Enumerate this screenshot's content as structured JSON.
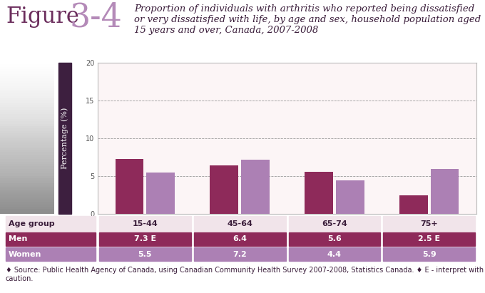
{
  "chart_data": {
    "type": "bar",
    "figure_label": "Figure",
    "figure_number": "3-4",
    "title": "Proportion of individuals with arthritis who reported being dissatisfied or very dissatisfied with life, by age and sex, household population aged 15 years and over, Canada, 2007-2008",
    "y_label": "Percentage (%)",
    "x_label": "Age group",
    "categories": [
      "15-44",
      "45-64",
      "65-74",
      "75+"
    ],
    "series": [
      {
        "name": "Men",
        "color": "#8e2a5a",
        "values": [
          7.3,
          6.4,
          5.6,
          2.5
        ],
        "value_labels": [
          "7.3 E",
          "6.4",
          "5.6",
          "2.5 E"
        ]
      },
      {
        "name": "Women",
        "color": "#ac80b4",
        "values": [
          5.5,
          7.2,
          4.4,
          5.9
        ]
      }
    ],
    "ylim": [
      0,
      20
    ],
    "yticks": [
      0,
      5,
      10,
      15,
      20
    ],
    "grid": true,
    "tick_labels": "y",
    "note": "♦ Source: Public Health Agency of Canada, using Canadian Community Health Survey 2007-2008, Statistics Canada. ♦ E - interpret with caution."
  }
}
